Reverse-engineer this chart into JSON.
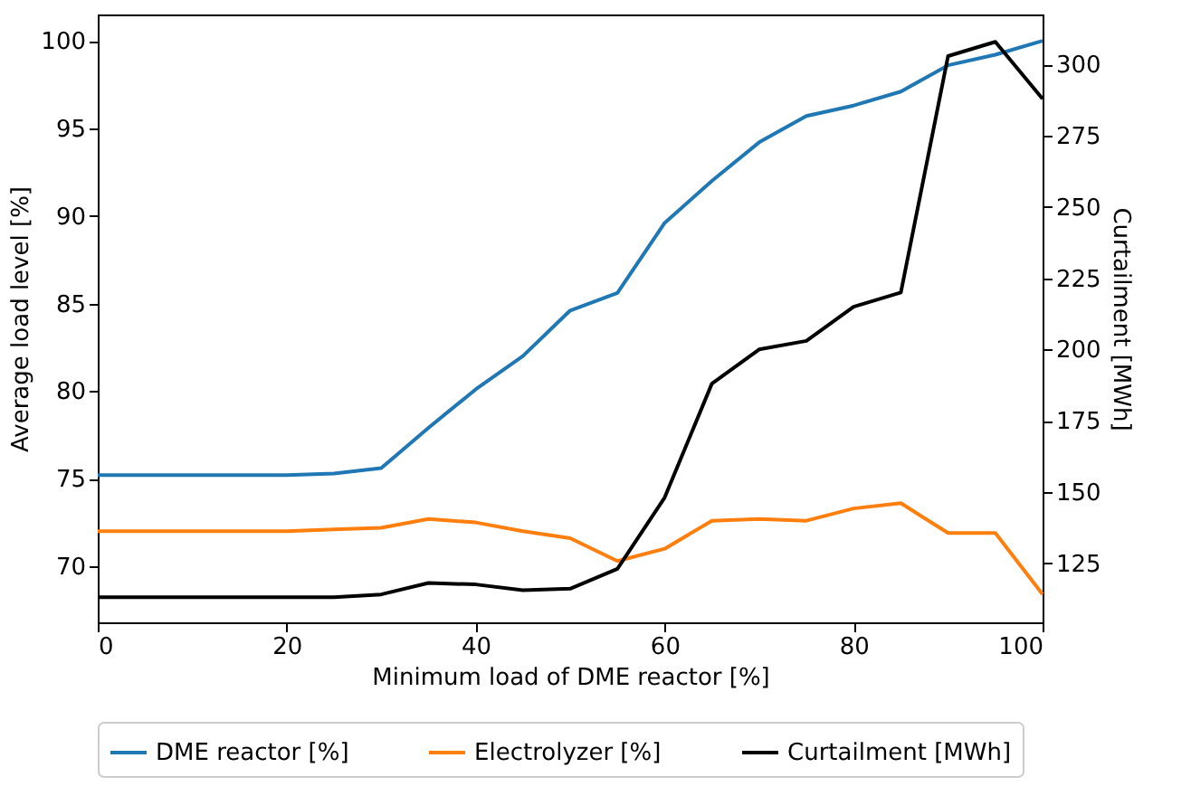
{
  "chart_data": {
    "type": "line",
    "xlabel": "Minimum load of DME reactor [%]",
    "ylabel": "Average load level [%]",
    "y2label": "Curtailment [MWh]",
    "x": [
      0,
      5,
      10,
      15,
      20,
      25,
      30,
      35,
      40,
      45,
      50,
      55,
      60,
      65,
      70,
      75,
      80,
      85,
      90,
      95,
      100
    ],
    "series": [
      {
        "name": "DME reactor [%]",
        "color": "#1f77b4",
        "values": [
          75.2,
          75.2,
          75.2,
          75.2,
          75.2,
          75.3,
          75.6,
          77.9,
          80.1,
          82.0,
          84.6,
          85.6,
          89.6,
          92.0,
          94.2,
          95.7,
          96.3,
          97.1,
          98.6,
          99.2,
          100.0
        ]
      },
      {
        "name": "Electrolyzer [%]",
        "color": "#ff7f0e",
        "values": [
          72.0,
          72.0,
          72.0,
          72.0,
          72.0,
          72.1,
          72.2,
          72.7,
          72.5,
          72.0,
          71.6,
          70.3,
          71.0,
          72.6,
          72.7,
          72.6,
          73.3,
          73.6,
          71.9,
          71.9,
          68.4
        ]
      },
      {
        "name": "Curtailment [MWh]",
        "color": "#000000",
        "axis": "y2",
        "values": [
          113,
          113,
          113,
          113,
          113,
          113,
          114,
          118,
          117.5,
          115.5,
          116,
          123,
          148,
          188,
          200,
          203,
          215,
          220,
          303,
          308,
          288
        ]
      }
    ],
    "xlim": [
      0,
      100
    ],
    "xticks": [
      0,
      20,
      40,
      60,
      80,
      100
    ],
    "ylim": [
      66.8,
      101.5
    ],
    "yticks": [
      70,
      75,
      80,
      85,
      90,
      95,
      100
    ],
    "y2lim": [
      104.2,
      317.6
    ],
    "y2ticks": [
      125,
      150,
      175,
      200,
      225,
      250,
      275,
      300
    ],
    "legend": "bottom",
    "grid": false
  }
}
